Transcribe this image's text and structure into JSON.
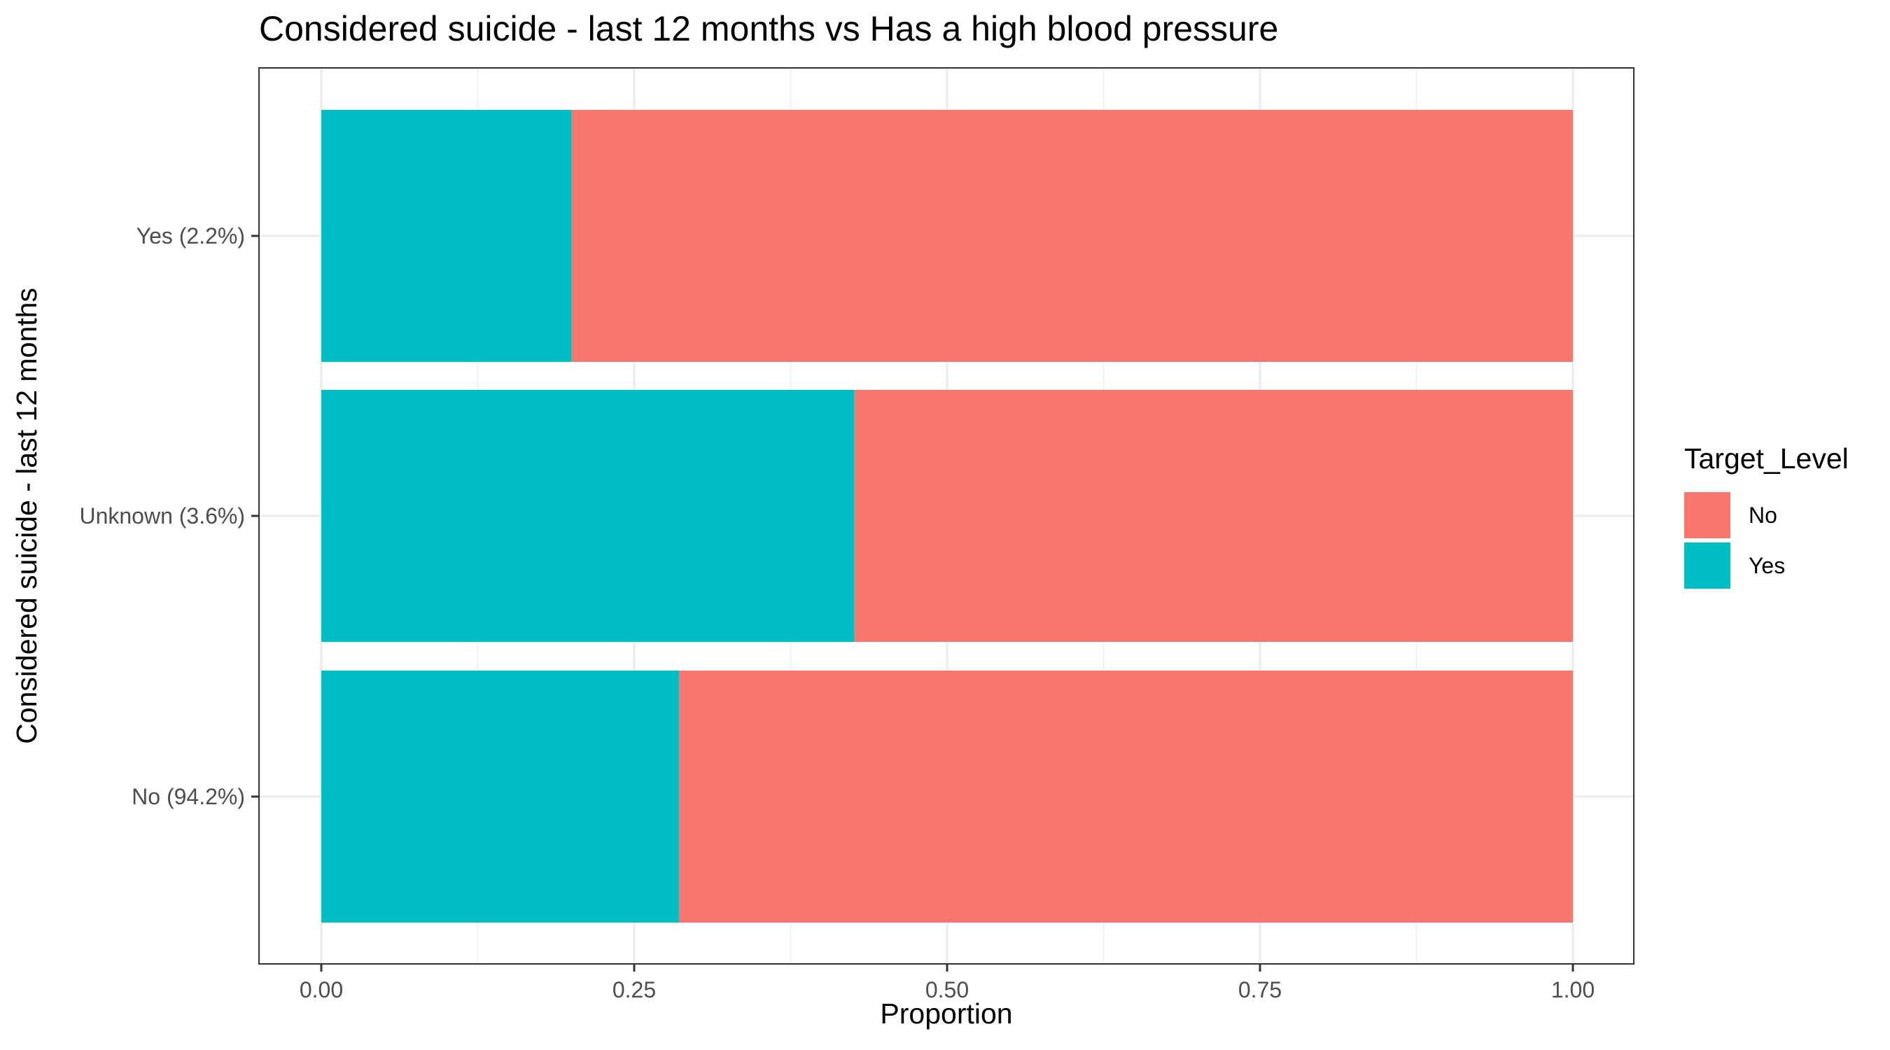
{
  "chart_data": {
    "type": "bar",
    "orientation": "horizontal",
    "stacked": true,
    "title": "Considered suicide - last 12 months vs Has a high blood pressure",
    "xlabel": "Proportion",
    "ylabel": "Considered suicide - last 12 months",
    "xlim": [
      0,
      1
    ],
    "x_ticks": [
      "0.00",
      "0.25",
      "0.50",
      "0.75",
      "1.00"
    ],
    "categories": [
      "Yes (2.2%)",
      "Unknown (3.6%)",
      "No (94.2%)"
    ],
    "series": [
      {
        "name": "Yes",
        "color": "#00BFC4",
        "values": [
          0.2,
          0.426,
          0.286
        ]
      },
      {
        "name": "No",
        "color": "#F8766D",
        "values": [
          0.8,
          0.574,
          0.714
        ]
      }
    ],
    "legend": {
      "title": "Target_Level",
      "position": "right",
      "items": [
        {
          "label": "No",
          "color": "#F8766D"
        },
        {
          "label": "Yes",
          "color": "#00BFC4"
        }
      ]
    },
    "grid": true
  }
}
